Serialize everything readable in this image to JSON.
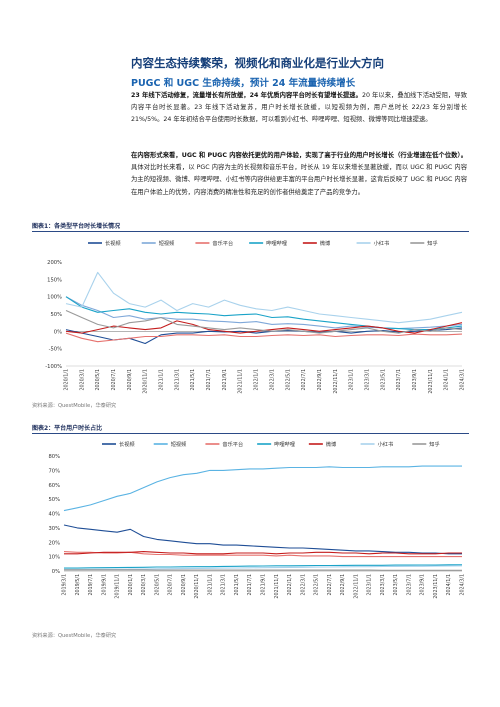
{
  "heading": "内容生态持续繁荣，视频化和商业化是行业大方向",
  "subheading": "PUGC 和 UGC 生命持续，预计 24 年流量持续增长",
  "para1": {
    "bold": "23 年线下活动修复，流量增长有所放缓，24 年优质内容平台时长有望增长提速。",
    "rest": "20 年以来，叠加线下活动受阻，导致内容平台时长显著。23 年线下活动复苏，用户时长增长放缓，以短视频为例，用户总时长 22/23 年分别增长 21%/5%。24 年年初结合平台使用时长数据，可以看到小红书、哔哩哔哩、短视频、微博等同比增速提速。"
  },
  "para2": {
    "bold": "在内容形式来看，UGC 和 PUGC 内容依托更优的用户体验，实现了高于行业的用户时长增长（行业增速在低个位数）。",
    "rest": "具体对比时长来看，以 PGC 内容为主的长视频和音乐平台，时长从 19 年以来增长显著放缓，而以 UGC 和 PUGC 内容为主的短视频、微博、哔哩哔哩、小红书等内容供给更丰富的平台用户时长增长显著，这背后反映了 UGC 和 PUGC 内容在用户体验上的优势，内容消费的精准性和充足的创作者供给奠定了产品的竞争力。"
  },
  "figure1": {
    "title": "图表1：各类型平台时长增长情况",
    "source": "资料来源：QuestMobile，华泰研究"
  },
  "figure2": {
    "title": "图表2：平台用户时长占比",
    "source": "资料来源：QuestMobile，华泰研究"
  },
  "chart_data": [
    {
      "type": "line",
      "title": "各类型平台时长增长情况",
      "xlabel": "",
      "ylabel": "",
      "ylim": [
        -100,
        200
      ],
      "yticks": [
        "-100%",
        "-50%",
        "0%",
        "50%",
        "100%",
        "150%",
        "200%"
      ],
      "grid": false,
      "legend_position": "top",
      "categories": [
        "2020/1/1",
        "2020/3/1",
        "2020/5/1",
        "2020/7/1",
        "2020/9/1",
        "2020/11/1",
        "2021/1/1",
        "2021/3/1",
        "2021/5/1",
        "2021/7/1",
        "2021/9/1",
        "2021/11/1",
        "2022/1/1",
        "2022/3/1",
        "2022/5/1",
        "2022/7/1",
        "2022/9/1",
        "2022/11/1",
        "2023/1/1",
        "2023/3/1",
        "2023/5/1",
        "2023/7/1",
        "2023/9/1",
        "2023/11/1",
        "2024/1/1",
        "2024/3/1"
      ],
      "series": [
        {
          "name": "长视频",
          "color": "#1f4e96",
          "values": [
            5,
            -5,
            -15,
            -25,
            -20,
            -35,
            -10,
            -5,
            -5,
            0,
            -2,
            0,
            -5,
            0,
            2,
            0,
            -3,
            0,
            -5,
            0,
            2,
            -2,
            0,
            2,
            5,
            10
          ]
        },
        {
          "name": "短视频",
          "color": "#7fa8d9",
          "values": [
            100,
            75,
            60,
            40,
            45,
            35,
            40,
            35,
            35,
            30,
            28,
            25,
            28,
            20,
            22,
            20,
            15,
            10,
            15,
            12,
            10,
            8,
            10,
            12,
            15,
            20
          ]
        },
        {
          "name": "音乐平台",
          "color": "#e6726e",
          "values": [
            -5,
            -20,
            -30,
            -25,
            -20,
            -15,
            -15,
            -10,
            -10,
            -12,
            -10,
            -15,
            -15,
            -12,
            -10,
            -12,
            -10,
            -15,
            -12,
            -10,
            -10,
            -12,
            -8,
            -10,
            -10,
            -8
          ]
        },
        {
          "name": "哔哩哔哩",
          "color": "#1aa3c8",
          "values": [
            100,
            70,
            55,
            60,
            65,
            55,
            50,
            55,
            52,
            50,
            45,
            48,
            50,
            40,
            42,
            35,
            30,
            25,
            20,
            15,
            10,
            8,
            5,
            5,
            10,
            15
          ]
        },
        {
          "name": "微博",
          "color": "#c41c1c",
          "values": [
            0,
            -5,
            5,
            15,
            10,
            5,
            10,
            30,
            20,
            5,
            0,
            -5,
            0,
            5,
            10,
            5,
            0,
            5,
            10,
            15,
            10,
            0,
            -5,
            5,
            15,
            25
          ]
        },
        {
          "name": "小红书",
          "color": "#a9d2ec",
          "values": [
            80,
            70,
            170,
            110,
            80,
            70,
            90,
            60,
            80,
            70,
            90,
            75,
            65,
            60,
            70,
            60,
            50,
            45,
            40,
            35,
            30,
            25,
            30,
            35,
            45,
            55
          ]
        },
        {
          "name": "知乎",
          "color": "#9a9a9a",
          "values": [
            60,
            40,
            20,
            10,
            25,
            30,
            40,
            20,
            15,
            10,
            5,
            10,
            5,
            0,
            5,
            0,
            -5,
            0,
            5,
            10,
            0,
            -5,
            5,
            0,
            10,
            5
          ]
        }
      ]
    },
    {
      "type": "line",
      "title": "平台用户时长占比",
      "xlabel": "",
      "ylabel": "",
      "ylim": [
        0,
        80
      ],
      "yticks": [
        "0%",
        "10%",
        "20%",
        "30%",
        "40%",
        "50%",
        "60%",
        "70%",
        "80%"
      ],
      "grid": false,
      "legend_position": "top",
      "categories": [
        "2019/3/1",
        "2019/5/1",
        "2019/7/1",
        "2019/9/1",
        "2019/11/1",
        "2020/1/1",
        "2020/3/1",
        "2020/5/1",
        "2020/7/1",
        "2020/9/1",
        "2020/11/1",
        "2021/1/1",
        "2021/3/1",
        "2021/5/1",
        "2021/7/1",
        "2021/9/1",
        "2021/11/1",
        "2022/1/1",
        "2022/3/1",
        "2022/5/1",
        "2022/7/1",
        "2022/9/1",
        "2022/11/1",
        "2023/1/1",
        "2023/3/1",
        "2023/5/1",
        "2023/7/1",
        "2023/9/1",
        "2023/11/1",
        "2024/1/1",
        "2024/3/1"
      ],
      "series": [
        {
          "name": "长视频",
          "color": "#1f4e96",
          "values": [
            32,
            30,
            29,
            28,
            27,
            29,
            24,
            22,
            21,
            20,
            19,
            19,
            18,
            18,
            17.5,
            17,
            16.5,
            16,
            16,
            15.5,
            15,
            14.5,
            14,
            14,
            13.5,
            13,
            13,
            12.5,
            12.5,
            12,
            12
          ]
        },
        {
          "name": "短视频",
          "color": "#5ab3e3",
          "values": [
            42,
            44,
            46,
            49,
            52,
            54,
            58,
            62,
            65,
            67,
            68,
            70,
            70,
            70.5,
            71,
            71,
            71.5,
            72,
            72,
            72,
            72.5,
            72,
            72,
            72,
            72.5,
            72.5,
            72.5,
            73,
            73,
            73,
            73
          ]
        },
        {
          "name": "音乐平台",
          "color": "#e6726e",
          "values": [
            13.5,
            13,
            13,
            12.5,
            12.5,
            13,
            12,
            11.5,
            11.5,
            11,
            11,
            11,
            11,
            11,
            11,
            11,
            10.5,
            11,
            10.5,
            10.5,
            10.5,
            10,
            10,
            10,
            10,
            10,
            10,
            10,
            10,
            10,
            10
          ]
        },
        {
          "name": "哔哩哔哩",
          "color": "#1aa3c8",
          "values": [
            2,
            2,
            2.2,
            2.3,
            2.4,
            2.5,
            2.6,
            2.8,
            2.8,
            2.9,
            3,
            3,
            3.2,
            3.3,
            3.4,
            3.5,
            3.6,
            3.6,
            3.7,
            3.8,
            3.8,
            3.9,
            4,
            4,
            4,
            4.1,
            4.1,
            4.2,
            4.2,
            4.3,
            4.3
          ]
        },
        {
          "name": "微博",
          "color": "#c41c1c",
          "values": [
            12,
            12,
            12.5,
            13,
            13,
            13,
            13.5,
            13,
            12.5,
            12.5,
            12,
            12,
            12,
            12.5,
            12.5,
            12.5,
            12,
            12.5,
            12.5,
            13,
            13,
            12.5,
            12.5,
            12,
            12.5,
            12.5,
            12,
            12,
            12,
            12.5,
            12.5
          ]
        },
        {
          "name": "小红书",
          "color": "#a9d2ec",
          "values": [
            1,
            1,
            1.1,
            1.2,
            1.2,
            1.3,
            1.4,
            1.5,
            1.6,
            1.7,
            1.8,
            1.9,
            2,
            2.1,
            2.2,
            2.3,
            2.4,
            2.5,
            2.6,
            2.7,
            2.8,
            2.9,
            3,
            3,
            3.1,
            3.2,
            3.3,
            3.3,
            3.4,
            3.5,
            3.6
          ]
        },
        {
          "name": "知乎",
          "color": "#9a9a9a",
          "values": [
            0.8,
            0.8,
            0.8,
            0.8,
            0.8,
            0.8,
            0.8,
            0.7,
            0.7,
            0.7,
            0.7,
            0.7,
            0.7,
            0.7,
            0.6,
            0.6,
            0.6,
            0.6,
            0.6,
            0.6,
            0.6,
            0.6,
            0.6,
            0.6,
            0.5,
            0.5,
            0.5,
            0.5,
            0.5,
            0.5,
            0.5
          ]
        }
      ]
    }
  ]
}
